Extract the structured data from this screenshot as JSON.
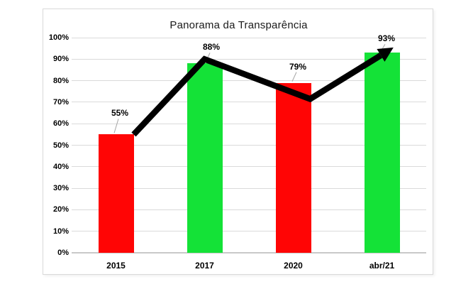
{
  "chart_data": {
    "type": "bar",
    "title": "Panorama da Transparência",
    "categories": [
      "2015",
      "2017",
      "2020",
      "abr/21"
    ],
    "values": [
      55,
      88,
      79,
      93
    ],
    "data_labels": [
      "55%",
      "88%",
      "79%",
      "93%"
    ],
    "bar_colors": [
      "#ff0505",
      "#14e237",
      "#ff0505",
      "#14e237"
    ],
    "y_ticks": [
      "0%",
      "10%",
      "20%",
      "30%",
      "40%",
      "50%",
      "60%",
      "70%",
      "80%",
      "90%",
      "100%"
    ],
    "ylim": [
      0,
      100
    ],
    "grid": "horizontal-only",
    "legend": "none",
    "annotations": {
      "trend_arrow": {
        "description": "thick black arrow rising from 2015 bar top, peaking over 2017, dipping at 2020, ending with arrowhead at abr/21 bar top",
        "color": "#000000",
        "points_pct": [
          [
            0.7,
            55
          ],
          [
            1.5,
            90
          ],
          [
            2.69,
            71.5
          ],
          [
            3.63,
            95.4
          ]
        ]
      }
    }
  },
  "colors": {
    "red_bar": "#ff0505",
    "green_bar": "#14e237",
    "gridline": "#dadada",
    "axis_line": "#c9c9c9",
    "leader_line": "#a6a6a6",
    "panel_border": "#d9d9d9",
    "background": "#ffffff",
    "text": "#000000"
  }
}
